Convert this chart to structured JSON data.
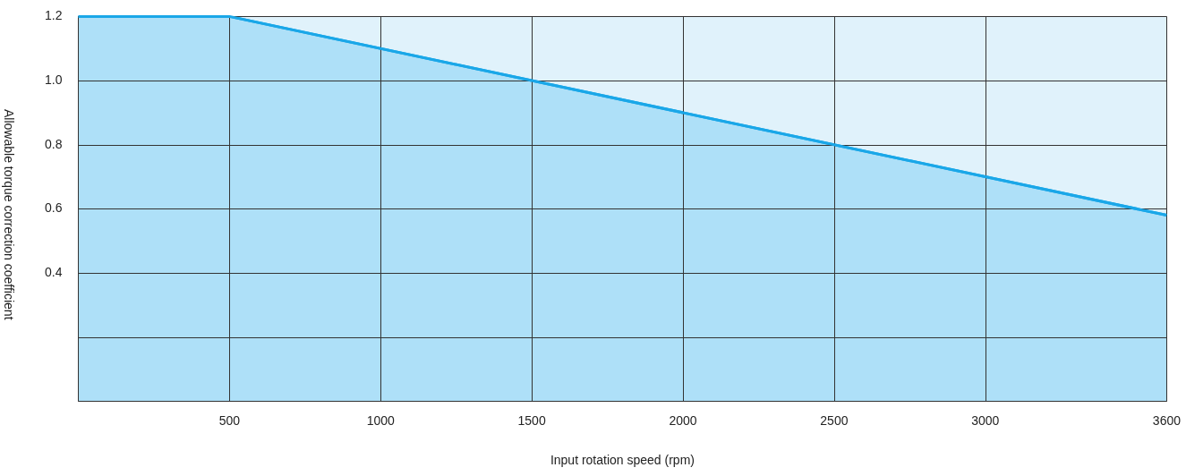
{
  "chart_data": {
    "type": "area",
    "xlabel": "Input rotation speed (rpm)",
    "ylabel": "Allowable torque correction coefficient",
    "series": [
      {
        "color": "#1aa7e8",
        "x": [
          0,
          500,
          3600
        ],
        "values": [
          1.2,
          1.2,
          0.58
        ]
      }
    ],
    "xlim": [
      0,
      3600
    ],
    "xticks": [
      {
        "value": 0,
        "label": null
      },
      500,
      1000,
      1500,
      2000,
      2500,
      3000,
      3600
    ],
    "ylim": [
      0,
      1.2
    ],
    "yticks": [
      {
        "value": 0,
        "label": null
      },
      {
        "value": 0.2,
        "label": null
      },
      0.4,
      0.6,
      0.8,
      {
        "value": 1,
        "label": "1.0"
      },
      1.2
    ],
    "grid": true
  }
}
